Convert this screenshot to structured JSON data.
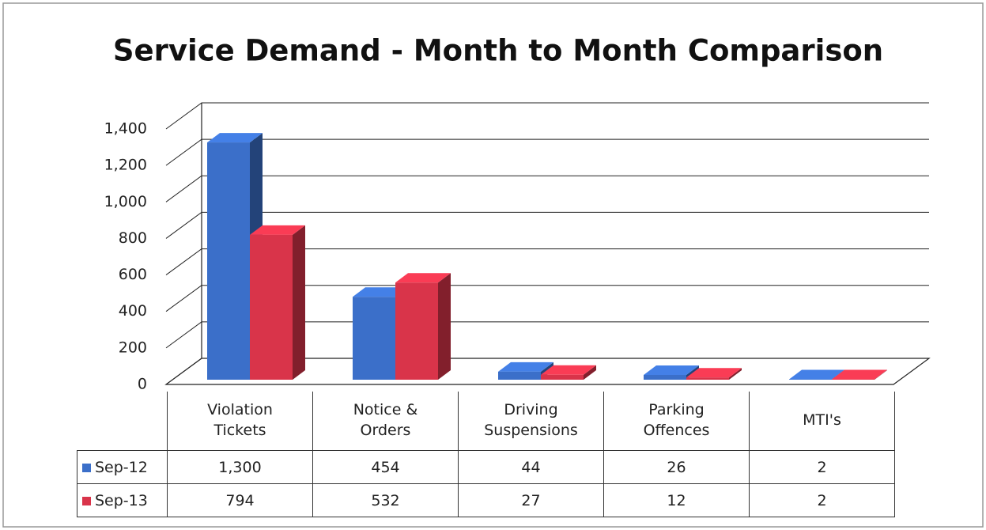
{
  "chart_data": {
    "type": "bar3d",
    "title": "Service Demand - Month to Month Comparison",
    "categories": [
      "Violation Tickets",
      "Notice & Orders",
      "Driving Suspensions",
      "Parking Offences",
      "MTI's"
    ],
    "series": [
      {
        "name": "Sep-12",
        "color": "#3b6fc9",
        "values": [
          1300,
          454,
          44,
          26,
          2
        ],
        "value_labels": [
          "1,300",
          "454",
          "44",
          "26",
          "2"
        ]
      },
      {
        "name": "Sep-13",
        "color": "#d9344a",
        "values": [
          794,
          532,
          27,
          12,
          2
        ]
      }
    ],
    "ylim": [
      0,
      1400
    ],
    "yticks": [
      0,
      200,
      400,
      600,
      800,
      {
        "value": 1000,
        "label": "1,000"
      },
      {
        "value": 1200,
        "label": "1,200"
      },
      {
        "value": 1400,
        "label": "1,400"
      }
    ],
    "grid": true
  }
}
